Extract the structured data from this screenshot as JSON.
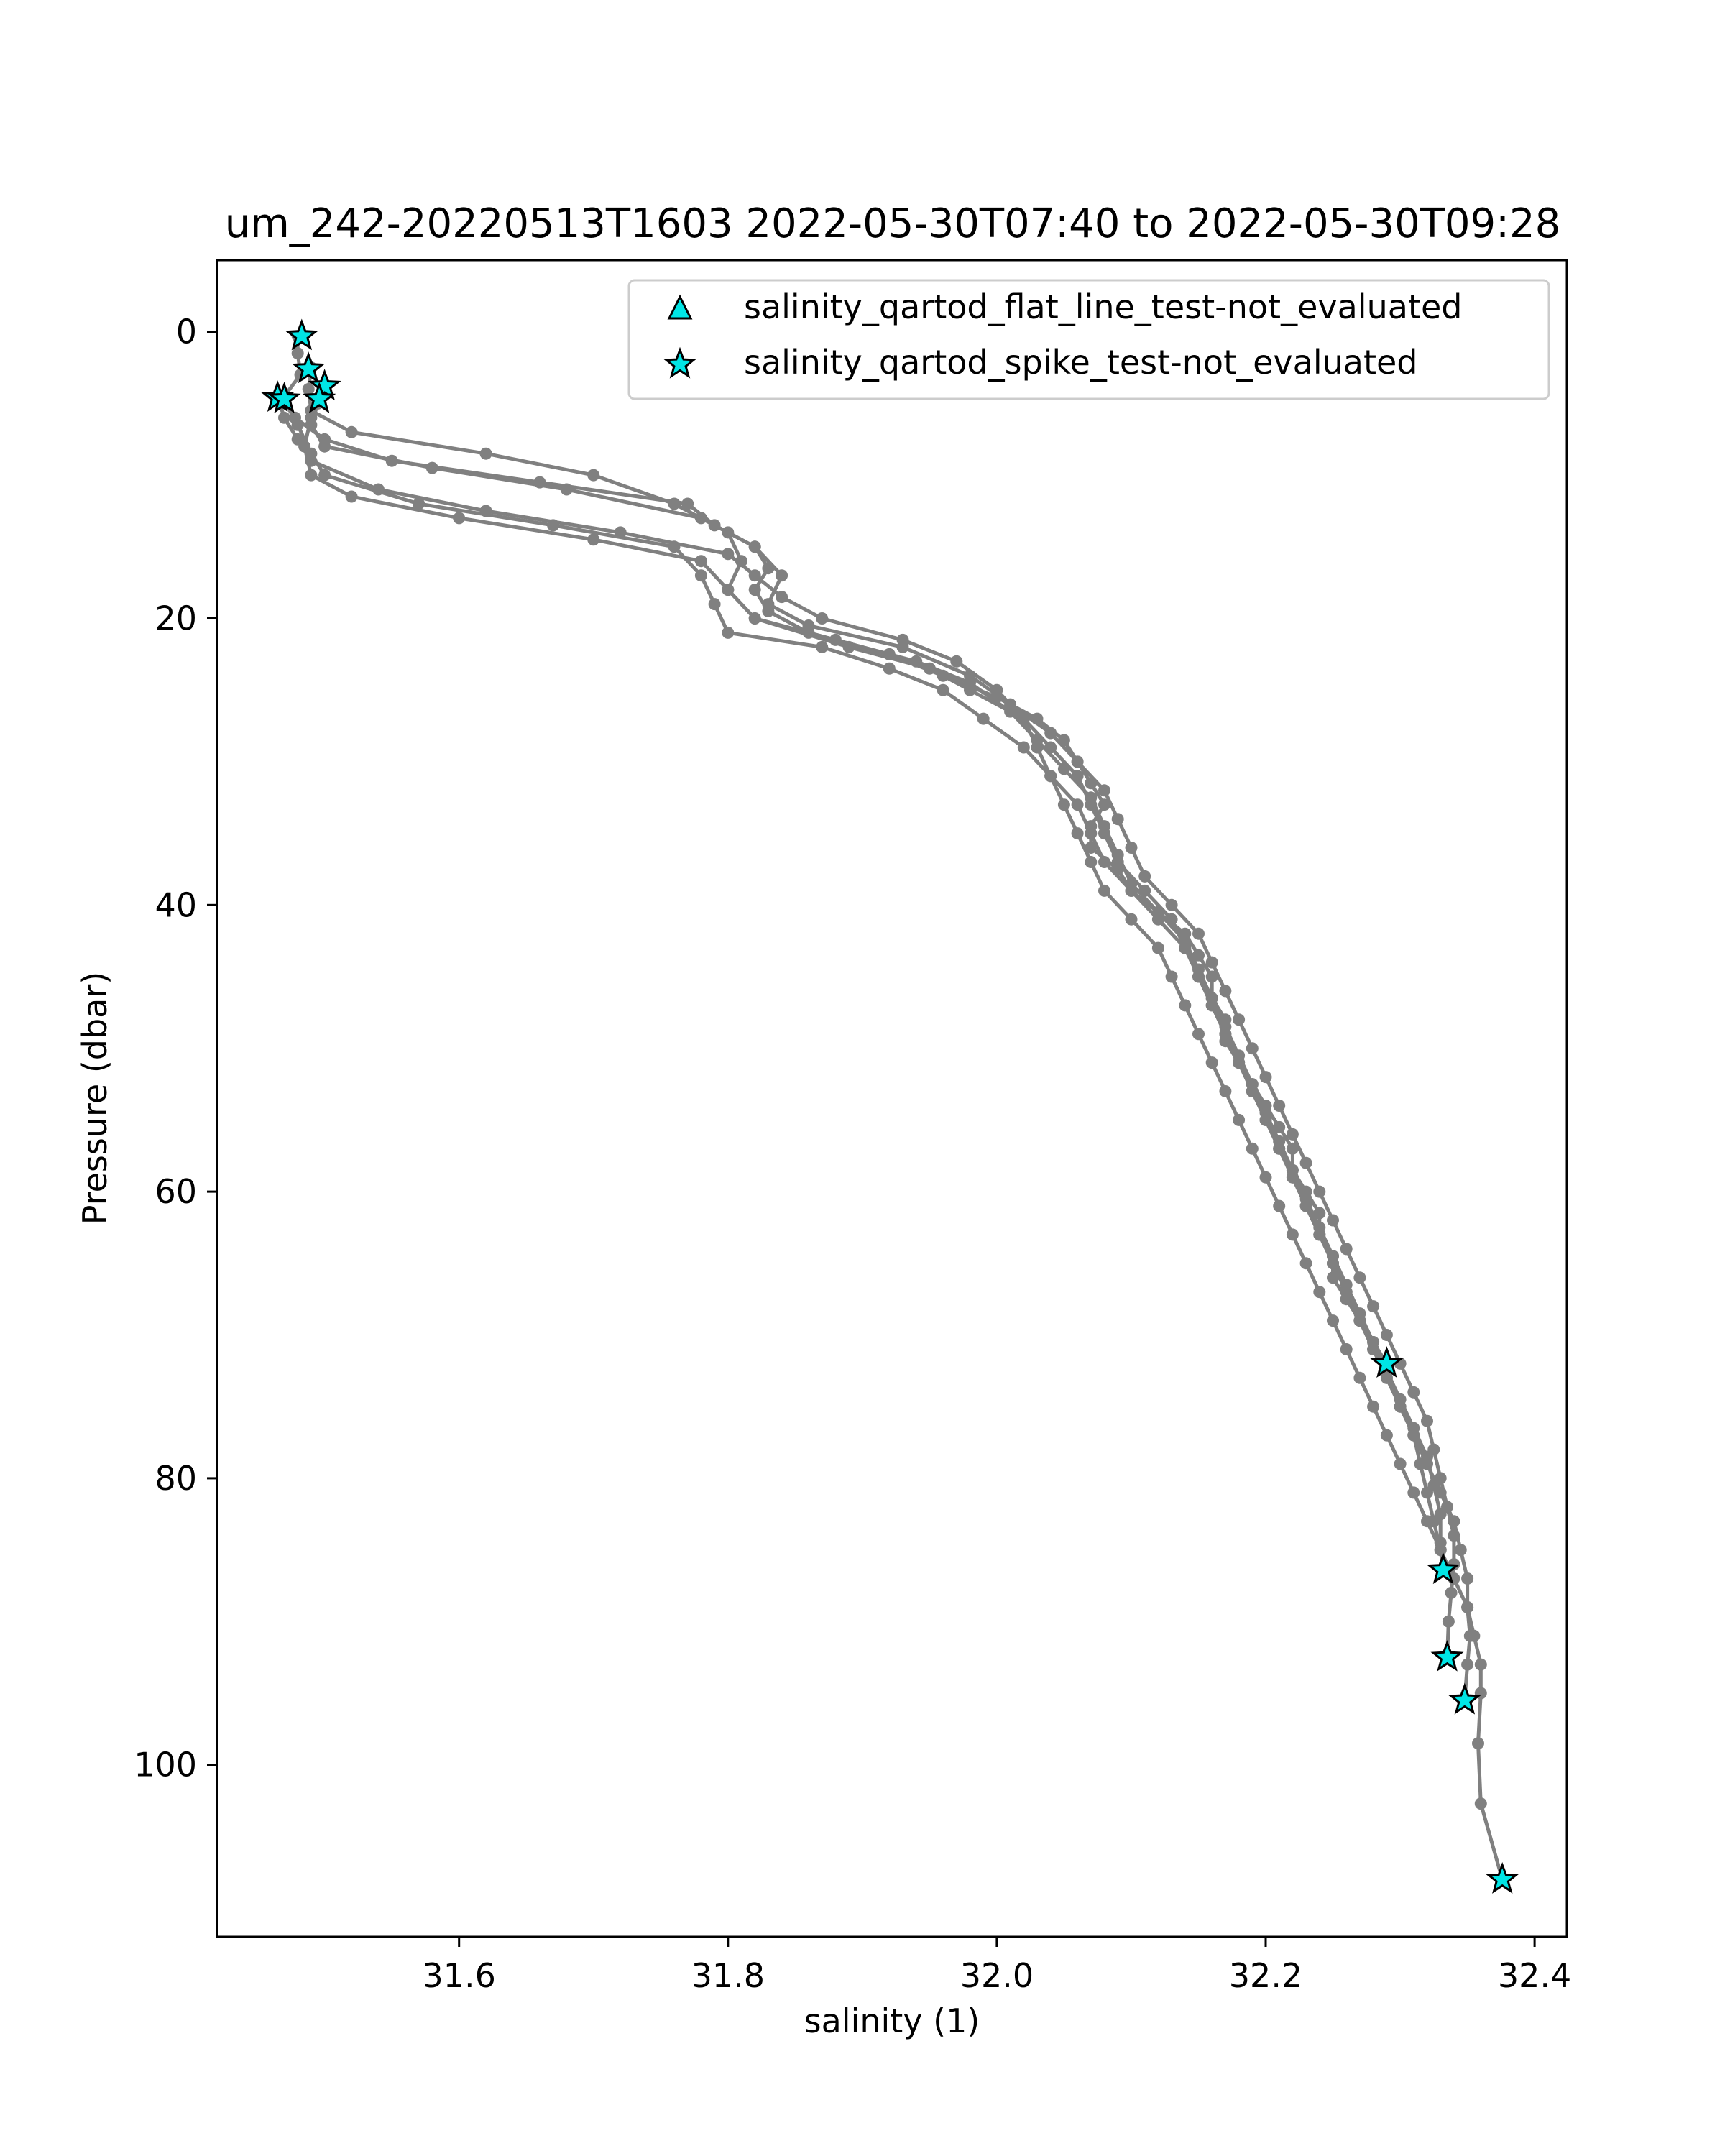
{
  "chart_data": {
    "type": "line",
    "title": "um_242-20220513T1603 2022-05-30T07:40 to 2022-05-30T09:28",
    "xlabel": "salinity (1)",
    "ylabel": "Pressure (dbar)",
    "xlim": [
      31.42,
      32.424
    ],
    "ylim": [
      112,
      -5
    ],
    "y_inverted": true,
    "grid": false,
    "x_ticks": [
      "31.6",
      "31.8",
      "32.0",
      "32.2",
      "32.4"
    ],
    "x_tick_values": [
      31.6,
      31.8,
      32.0,
      32.2,
      32.4
    ],
    "y_ticks": [
      "0",
      "20",
      "40",
      "60",
      "80",
      "100"
    ],
    "y_tick_values": [
      0,
      20,
      40,
      60,
      80,
      100
    ],
    "legend_position": "top-right",
    "legend": [
      {
        "label": "salinity_qartod_flat_line_test-not_evaluated",
        "marker": "triangle"
      },
      {
        "label": "salinity_qartod_spike_test-not_evaluated",
        "marker": "star"
      }
    ],
    "colors": {
      "profile_line": "#808080",
      "flag_marker": "#00e5e5",
      "marker_edge": "#000000"
    },
    "profiles": [
      {
        "points": [
          [
            31.48,
            0.3
          ],
          [
            31.48,
            1.5
          ],
          [
            31.482,
            3
          ],
          [
            31.47,
            4.5
          ],
          [
            31.478,
            6
          ],
          [
            31.5,
            7.5
          ],
          [
            31.55,
            9
          ],
          [
            31.66,
            10.5
          ],
          [
            31.77,
            12
          ],
          [
            31.79,
            13.5
          ],
          [
            31.82,
            15
          ],
          [
            31.83,
            16.5
          ],
          [
            31.82,
            18
          ],
          [
            31.83,
            19.5
          ],
          [
            31.86,
            21
          ],
          [
            31.92,
            22.5
          ],
          [
            31.96,
            24
          ],
          [
            32.0,
            25.5
          ],
          [
            32.03,
            27
          ],
          [
            32.05,
            28.5
          ],
          [
            32.06,
            30
          ],
          [
            32.07,
            31.5
          ],
          [
            32.08,
            33
          ],
          [
            32.07,
            34.5
          ],
          [
            32.07,
            36
          ],
          [
            32.09,
            37.5
          ],
          [
            32.1,
            39
          ],
          [
            32.12,
            40.5
          ],
          [
            32.14,
            42
          ],
          [
            32.15,
            43.5
          ],
          [
            32.16,
            45
          ],
          [
            32.16,
            46.5
          ],
          [
            32.17,
            48
          ],
          [
            32.17,
            49.5
          ],
          [
            32.18,
            51
          ],
          [
            32.19,
            52.5
          ],
          [
            32.2,
            54
          ],
          [
            32.21,
            55.5
          ],
          [
            32.22,
            57
          ],
          [
            32.22,
            58.5
          ],
          [
            32.23,
            60
          ],
          [
            32.24,
            61.5
          ],
          [
            32.24,
            63
          ],
          [
            32.25,
            64.5
          ],
          [
            32.25,
            66
          ],
          [
            32.26,
            67.5
          ],
          [
            32.27,
            69
          ],
          [
            32.28,
            70.5
          ],
          [
            32.29,
            72
          ]
        ]
      },
      {
        "points": [
          [
            31.49,
            2.5
          ],
          [
            31.488,
            4
          ],
          [
            31.49,
            5.5
          ],
          [
            31.52,
            7
          ],
          [
            31.62,
            8.5
          ],
          [
            31.7,
            10
          ],
          [
            31.76,
            12
          ],
          [
            31.8,
            14
          ],
          [
            31.81,
            16
          ],
          [
            31.8,
            18
          ],
          [
            31.82,
            20
          ],
          [
            31.89,
            22
          ],
          [
            31.95,
            23.5
          ],
          [
            31.98,
            25
          ],
          [
            32.02,
            27
          ],
          [
            32.03,
            29
          ],
          [
            32.04,
            31
          ],
          [
            32.06,
            33
          ],
          [
            32.07,
            35
          ],
          [
            32.08,
            37
          ],
          [
            32.1,
            39
          ],
          [
            32.12,
            41
          ],
          [
            32.14,
            43
          ],
          [
            32.15,
            45
          ],
          [
            32.16,
            47
          ],
          [
            32.17,
            49
          ],
          [
            32.18,
            51
          ],
          [
            32.19,
            53
          ],
          [
            32.2,
            55
          ],
          [
            32.21,
            57
          ],
          [
            32.22,
            59
          ],
          [
            32.23,
            61
          ],
          [
            32.24,
            63
          ],
          [
            32.25,
            65
          ],
          [
            32.26,
            67
          ],
          [
            32.27,
            69
          ],
          [
            32.28,
            71
          ],
          [
            32.29,
            73
          ],
          [
            32.3,
            75
          ],
          [
            32.31,
            77
          ],
          [
            32.315,
            79
          ],
          [
            32.32,
            81
          ],
          [
            32.325,
            83
          ],
          [
            32.33,
            85
          ],
          [
            32.332,
            86.5
          ]
        ]
      },
      {
        "points": [
          [
            31.5,
            3.8
          ],
          [
            31.495,
            5
          ],
          [
            31.49,
            6.5
          ],
          [
            31.5,
            8
          ],
          [
            31.58,
            9.5
          ],
          [
            31.68,
            11
          ],
          [
            31.78,
            13
          ],
          [
            31.82,
            15
          ],
          [
            31.84,
            17
          ],
          [
            31.83,
            19
          ],
          [
            31.86,
            20.5
          ],
          [
            31.93,
            22
          ],
          [
            31.98,
            24
          ],
          [
            32.01,
            26
          ],
          [
            32.04,
            28
          ],
          [
            32.06,
            30
          ],
          [
            32.08,
            32
          ],
          [
            32.09,
            34
          ],
          [
            32.1,
            36
          ],
          [
            32.11,
            38
          ],
          [
            32.13,
            40
          ],
          [
            32.15,
            42
          ],
          [
            32.16,
            44
          ],
          [
            32.17,
            46
          ],
          [
            32.18,
            48
          ],
          [
            32.19,
            50
          ],
          [
            32.2,
            52
          ],
          [
            32.21,
            54
          ],
          [
            32.22,
            56
          ],
          [
            32.23,
            58
          ],
          [
            32.24,
            60
          ],
          [
            32.25,
            62
          ],
          [
            32.26,
            64
          ],
          [
            32.27,
            66
          ],
          [
            32.28,
            68
          ],
          [
            32.29,
            70
          ],
          [
            32.3,
            72
          ],
          [
            32.31,
            74
          ],
          [
            32.32,
            76
          ],
          [
            32.325,
            78
          ],
          [
            32.33,
            80
          ],
          [
            32.335,
            82
          ],
          [
            32.34,
            84
          ],
          [
            32.34,
            86
          ],
          [
            32.338,
            88
          ],
          [
            32.336,
            90
          ],
          [
            32.335,
            92.5
          ]
        ]
      },
      {
        "points": [
          [
            31.465,
            4.5
          ],
          [
            31.47,
            6
          ],
          [
            31.48,
            7.5
          ],
          [
            31.49,
            9
          ],
          [
            31.54,
            11
          ],
          [
            31.62,
            12.5
          ],
          [
            31.72,
            14
          ],
          [
            31.8,
            15.5
          ],
          [
            31.82,
            17
          ],
          [
            31.84,
            18.5
          ],
          [
            31.87,
            20
          ],
          [
            31.93,
            21.5
          ],
          [
            31.97,
            23
          ],
          [
            32.0,
            25
          ],
          [
            32.02,
            27
          ],
          [
            32.04,
            29
          ],
          [
            32.06,
            31
          ],
          [
            32.07,
            33
          ],
          [
            32.08,
            35
          ],
          [
            32.09,
            37
          ],
          [
            32.11,
            39
          ],
          [
            32.13,
            41
          ],
          [
            32.14,
            43
          ],
          [
            32.15,
            45
          ],
          [
            32.16,
            47
          ],
          [
            32.17,
            49
          ],
          [
            32.18,
            51
          ],
          [
            32.19,
            53
          ],
          [
            32.2,
            55
          ],
          [
            32.21,
            57
          ],
          [
            32.22,
            59
          ],
          [
            32.23,
            61
          ],
          [
            32.24,
            63
          ],
          [
            32.25,
            65
          ],
          [
            32.26,
            67
          ],
          [
            32.27,
            69
          ],
          [
            32.28,
            71
          ],
          [
            32.29,
            73
          ],
          [
            32.3,
            75
          ],
          [
            32.31,
            77
          ],
          [
            32.32,
            79
          ],
          [
            32.33,
            81
          ],
          [
            32.34,
            83
          ],
          [
            32.345,
            85
          ],
          [
            32.35,
            87
          ],
          [
            32.35,
            89
          ],
          [
            32.352,
            91
          ],
          [
            32.35,
            93
          ],
          [
            32.348,
            95.5
          ]
        ]
      },
      {
        "points": [
          [
            31.47,
            4.8
          ],
          [
            31.48,
            6.5
          ],
          [
            31.49,
            8.5
          ],
          [
            31.5,
            10
          ],
          [
            31.57,
            12
          ],
          [
            31.67,
            13.5
          ],
          [
            31.76,
            15
          ],
          [
            31.78,
            17
          ],
          [
            31.79,
            19
          ],
          [
            31.8,
            21
          ],
          [
            31.87,
            22
          ],
          [
            31.92,
            23.5
          ],
          [
            31.96,
            25
          ],
          [
            31.99,
            27
          ],
          [
            32.02,
            29
          ],
          [
            32.04,
            31
          ],
          [
            32.05,
            33
          ],
          [
            32.06,
            35
          ],
          [
            32.07,
            37
          ],
          [
            32.08,
            39
          ],
          [
            32.1,
            41
          ],
          [
            32.12,
            43
          ],
          [
            32.13,
            45
          ],
          [
            32.14,
            47
          ],
          [
            32.15,
            49
          ],
          [
            32.16,
            51
          ],
          [
            32.17,
            53
          ],
          [
            32.18,
            55
          ],
          [
            32.19,
            57
          ],
          [
            32.2,
            59
          ],
          [
            32.21,
            61
          ],
          [
            32.22,
            63
          ],
          [
            32.23,
            65
          ],
          [
            32.24,
            67
          ],
          [
            32.25,
            69
          ],
          [
            32.26,
            71
          ],
          [
            32.27,
            73
          ],
          [
            32.28,
            75
          ],
          [
            32.29,
            77
          ],
          [
            32.3,
            79
          ],
          [
            32.31,
            81
          ],
          [
            32.32,
            83
          ],
          [
            32.33,
            85
          ],
          [
            32.34,
            87
          ],
          [
            32.35,
            89
          ],
          [
            32.355,
            91
          ],
          [
            32.36,
            93
          ],
          [
            32.36,
            95
          ],
          [
            32.358,
            98.5
          ],
          [
            32.36,
            102.7
          ],
          [
            32.376,
            108
          ]
        ]
      },
      {
        "points": [
          [
            31.496,
            4.8
          ],
          [
            31.49,
            6
          ],
          [
            31.485,
            8
          ],
          [
            31.49,
            10
          ],
          [
            31.52,
            11.5
          ],
          [
            31.6,
            13
          ],
          [
            31.7,
            14.5
          ],
          [
            31.78,
            16
          ],
          [
            31.8,
            18
          ],
          [
            31.82,
            20
          ],
          [
            31.88,
            21.5
          ],
          [
            31.94,
            23
          ],
          [
            31.98,
            24.5
          ],
          [
            32.01,
            26.5
          ],
          [
            32.03,
            28.5
          ],
          [
            32.05,
            30.5
          ],
          [
            32.07,
            32.5
          ],
          [
            32.08,
            34.5
          ],
          [
            32.09,
            36.5
          ],
          [
            32.1,
            38.5
          ],
          [
            32.12,
            40.5
          ],
          [
            32.14,
            42.5
          ],
          [
            32.15,
            44.5
          ],
          [
            32.16,
            46.5
          ],
          [
            32.17,
            48.5
          ],
          [
            32.18,
            50.5
          ],
          [
            32.19,
            52.5
          ],
          [
            32.2,
            54.5
          ],
          [
            32.21,
            56.5
          ],
          [
            32.22,
            58.5
          ],
          [
            32.23,
            60.5
          ],
          [
            32.24,
            62.5
          ],
          [
            32.25,
            64.5
          ],
          [
            32.26,
            66.5
          ],
          [
            32.27,
            68.5
          ],
          [
            32.28,
            70.5
          ],
          [
            32.29,
            72.5
          ],
          [
            32.3,
            74.5
          ],
          [
            32.31,
            76.5
          ],
          [
            32.32,
            78.5
          ],
          [
            32.325,
            80.5
          ],
          [
            32.33,
            82.5
          ],
          [
            32.33,
            84.5
          ]
        ]
      }
    ],
    "flag_points": [
      {
        "series": "salinity_qartod_spike_test-not_evaluated",
        "x": 31.483,
        "y": 0.3
      },
      {
        "series": "salinity_qartod_spike_test-not_evaluated",
        "x": 31.488,
        "y": 2.6
      },
      {
        "series": "salinity_qartod_spike_test-not_evaluated",
        "x": 31.5,
        "y": 3.8
      },
      {
        "series": "salinity_qartod_spike_test-not_evaluated",
        "x": 31.496,
        "y": 4.7
      },
      {
        "series": "salinity_qartod_spike_test-not_evaluated",
        "x": 31.465,
        "y": 4.6
      },
      {
        "series": "salinity_qartod_spike_test-not_evaluated",
        "x": 31.47,
        "y": 4.7
      },
      {
        "series": "salinity_qartod_spike_test-not_evaluated",
        "x": 32.29,
        "y": 72.0
      },
      {
        "series": "salinity_qartod_spike_test-not_evaluated",
        "x": 32.332,
        "y": 86.4
      },
      {
        "series": "salinity_qartod_spike_test-not_evaluated",
        "x": 32.335,
        "y": 92.5
      },
      {
        "series": "salinity_qartod_spike_test-not_evaluated",
        "x": 32.348,
        "y": 95.5
      },
      {
        "series": "salinity_qartod_spike_test-not_evaluated",
        "x": 32.376,
        "y": 108.0
      }
    ]
  }
}
